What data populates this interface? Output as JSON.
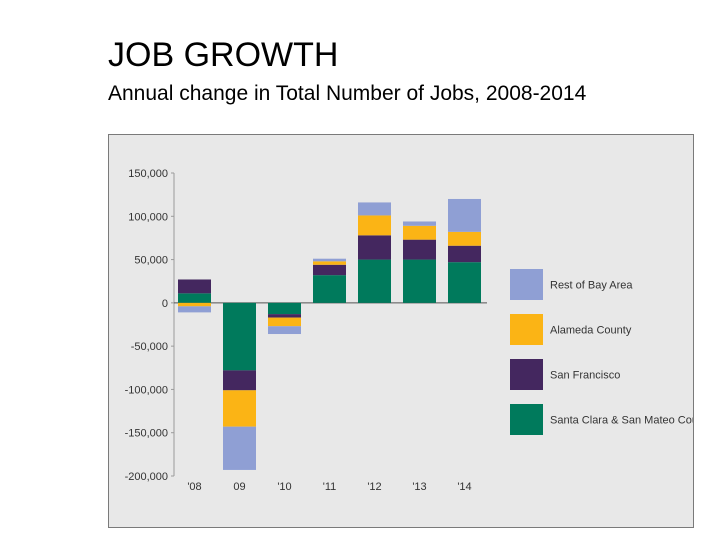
{
  "title": "JOB GROWTH",
  "subtitle": "Annual change in Total Number of Jobs, 2008-2014",
  "chart_data": {
    "type": "bar",
    "stacked": true,
    "categories": [
      "'08",
      "09",
      "'10",
      "'11",
      "'12",
      "'13",
      "'14"
    ],
    "series": [
      {
        "name": "Santa Clara & San Mateo Counties",
        "color": "#007a5c",
        "values": [
          11000,
          -78000,
          -13000,
          32000,
          50000,
          50000,
          47000
        ]
      },
      {
        "name": "San Francisco",
        "color": "#44275f",
        "values": [
          16000,
          -23000,
          -4000,
          12000,
          28000,
          23000,
          19000
        ]
      },
      {
        "name": "Alameda County",
        "color": "#fbb415",
        "values": [
          -4000,
          -42000,
          -10000,
          4000,
          23000,
          16000,
          16000
        ]
      },
      {
        "name": "Rest of Bay Area",
        "color": "#8f9fd4",
        "values": [
          -7000,
          -50000,
          -9000,
          3000,
          15000,
          5000,
          38000
        ]
      }
    ],
    "yticks": [
      "150,000",
      "100,000",
      "50,000",
      "0",
      "-50,000",
      "-100,000",
      "-150,000",
      "-200,000"
    ],
    "ylim": [
      -200000,
      150000
    ],
    "legend_order": [
      "Rest of Bay Area",
      "Alameda County",
      "San Francisco",
      "Santa Clara & San Mateo Counties"
    ],
    "legend_position": "right",
    "grid": false
  }
}
